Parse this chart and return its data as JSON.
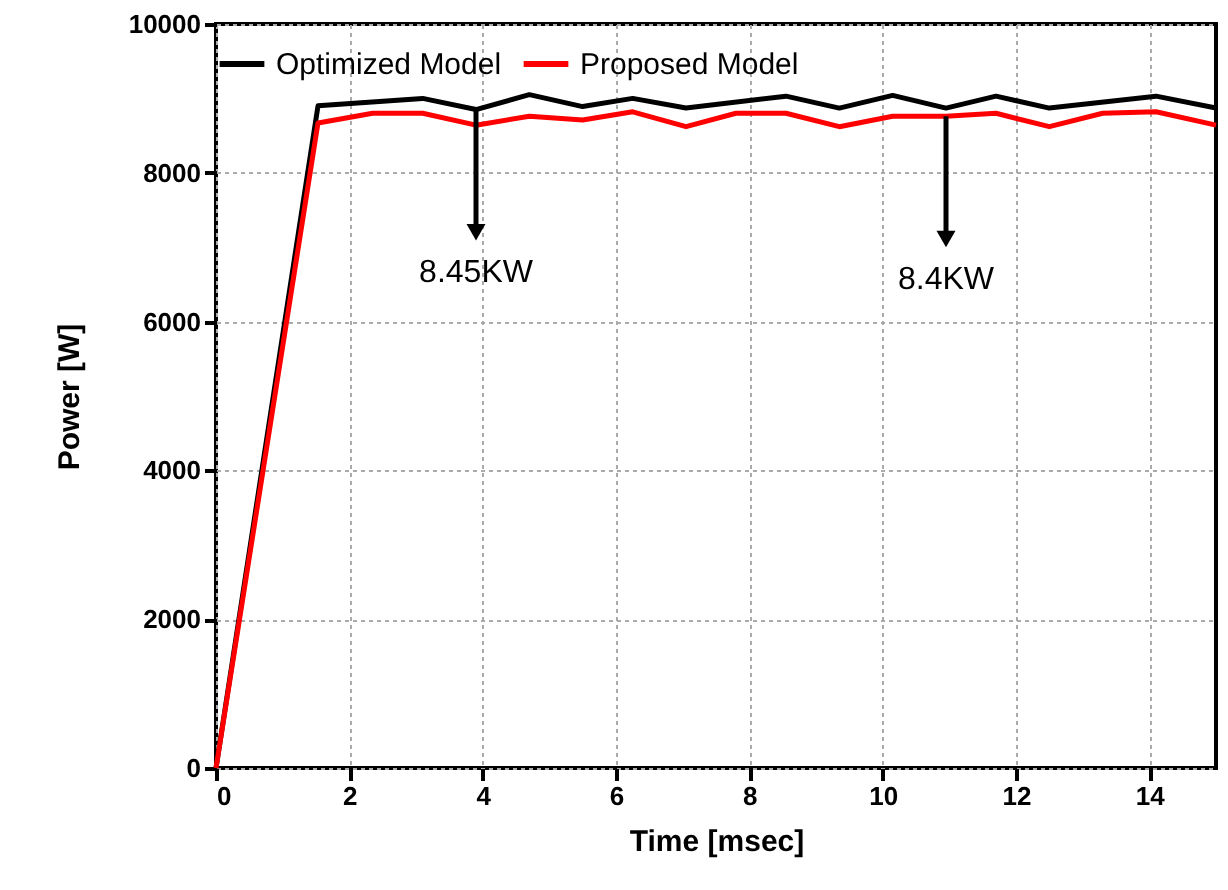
{
  "chart_data": {
    "type": "line",
    "xlabel": "Time [msec]",
    "ylabel": "Power [W]",
    "xlim": [
      0,
      15
    ],
    "ylim": [
      0,
      10000
    ],
    "xticks": [
      0,
      2,
      4,
      6,
      8,
      10,
      12,
      14
    ],
    "yticks": [
      0,
      2000,
      4000,
      6000,
      8000,
      10000
    ],
    "grid": true,
    "legend": "top",
    "line_style": "solid",
    "marker": "none",
    "annotations": [
      {
        "text": "8.45KW",
        "x": 3.9,
        "y": 8850
      },
      {
        "text": "8.4KW",
        "x": 10.95,
        "y": 8760
      }
    ],
    "series": [
      {
        "name": "Optimized Model",
        "color": "#000000",
        "x": [
          0,
          1.53,
          3.1,
          3.9,
          4.7,
          5.5,
          6.25,
          7.05,
          8.55,
          9.35,
          10.15,
          10.95,
          11.7,
          12.5,
          14.1,
          15
        ],
        "values": [
          0,
          8900,
          9000,
          8850,
          9050,
          8890,
          9000,
          8870,
          9030,
          8870,
          9040,
          8870,
          9030,
          8870,
          9030,
          8870
        ]
      },
      {
        "name": "Proposed Model",
        "color": "#ff0000",
        "x": [
          0,
          1.53,
          2.35,
          3.1,
          3.9,
          4.7,
          5.5,
          6.25,
          7.05,
          7.8,
          8.55,
          9.35,
          10.15,
          10.95,
          11.7,
          12.5,
          13.3,
          14.1,
          15
        ],
        "values": [
          0,
          8670,
          8800,
          8800,
          8640,
          8760,
          8710,
          8820,
          8620,
          8800,
          8800,
          8620,
          8760,
          8760,
          8800,
          8620,
          8800,
          8820,
          8640
        ]
      }
    ]
  }
}
